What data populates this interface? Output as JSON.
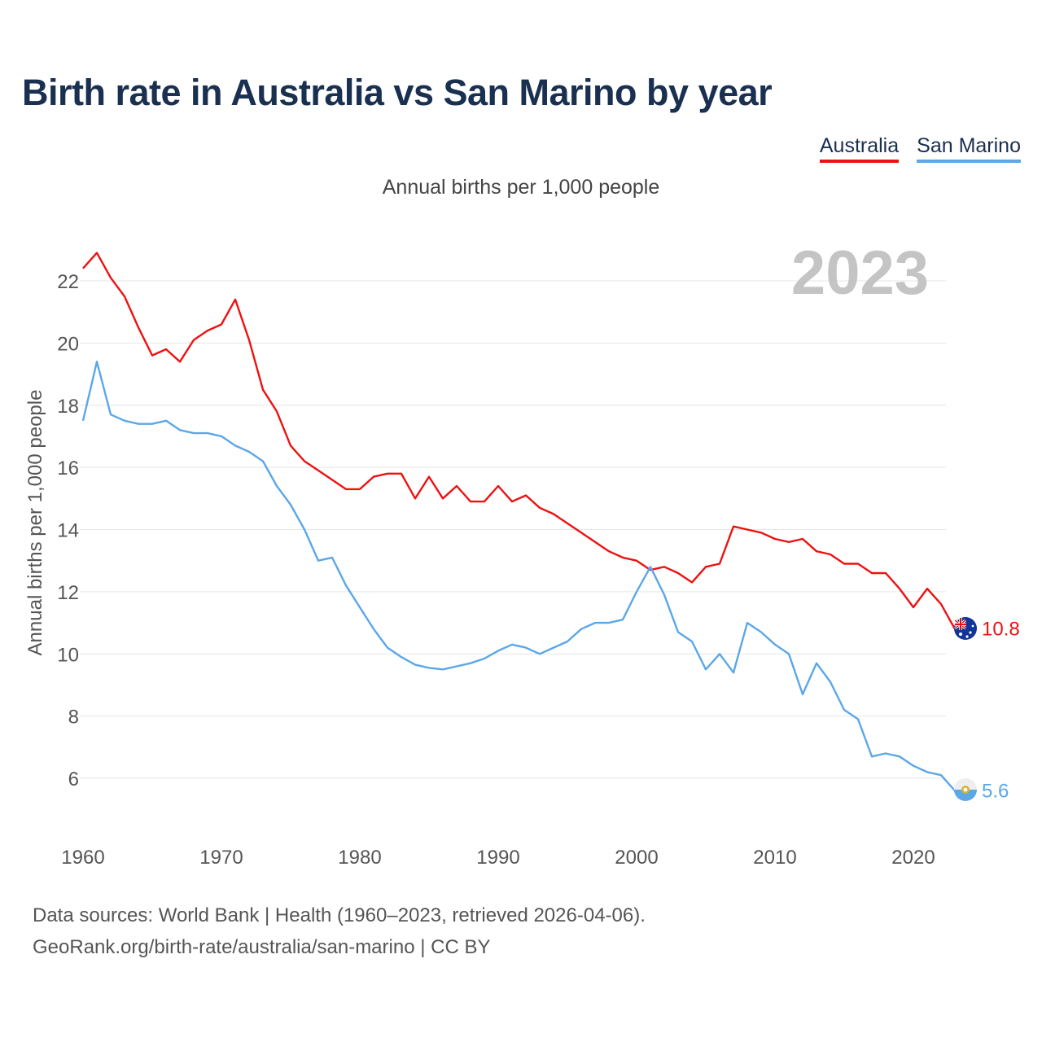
{
  "title": "Birth rate in Australia vs San Marino by year",
  "subtitle": "Annual births per 1,000 people",
  "legend": [
    "Australia",
    "San Marino"
  ],
  "year_watermark": "2023",
  "footer": {
    "line1": "Data sources: World Bank | Health (1960–2023, retrieved 2026-04-06).",
    "line2": "GeoRank.org/birth-rate/australia/san-marino | CC BY"
  },
  "colors": {
    "australia": "#ee1111",
    "san_marino": "#5ba7e8",
    "grid": "#e6e6e6",
    "tick_text": "#555555"
  },
  "chart_data": {
    "type": "line",
    "title": "Birth rate in Australia vs San Marino by year",
    "ylabel": "Annual births per 1,000 people",
    "xlabel": "",
    "xlim": [
      1960,
      2023
    ],
    "ylim": [
      4.8,
      23
    ],
    "xticks": [
      1960,
      1970,
      1980,
      1990,
      2000,
      2010,
      2020
    ],
    "yticks": [
      6,
      8,
      10,
      12,
      14,
      16,
      18,
      20,
      22
    ],
    "grid": true,
    "legend_position": "top-right",
    "x": [
      1960,
      1961,
      1962,
      1963,
      1964,
      1965,
      1966,
      1967,
      1968,
      1969,
      1970,
      1971,
      1972,
      1973,
      1974,
      1975,
      1976,
      1977,
      1978,
      1979,
      1980,
      1981,
      1982,
      1983,
      1984,
      1985,
      1986,
      1987,
      1988,
      1989,
      1990,
      1991,
      1992,
      1993,
      1994,
      1995,
      1996,
      1997,
      1998,
      1999,
      2000,
      2001,
      2002,
      2003,
      2004,
      2005,
      2006,
      2007,
      2008,
      2009,
      2010,
      2011,
      2012,
      2013,
      2014,
      2015,
      2016,
      2017,
      2018,
      2019,
      2020,
      2021,
      2022,
      2023
    ],
    "series": [
      {
        "name": "Australia",
        "end_label": "10.8",
        "values": [
          22.4,
          22.9,
          22.1,
          21.5,
          20.5,
          19.6,
          19.8,
          19.4,
          20.1,
          20.4,
          20.6,
          21.4,
          20.1,
          18.5,
          17.8,
          16.7,
          16.2,
          15.9,
          15.6,
          15.3,
          15.3,
          15.7,
          15.8,
          15.8,
          15.0,
          15.7,
          15.0,
          15.4,
          14.9,
          14.9,
          15.4,
          14.9,
          15.1,
          14.7,
          14.5,
          14.2,
          13.9,
          13.6,
          13.3,
          13.1,
          13.0,
          12.7,
          12.8,
          12.6,
          12.3,
          12.8,
          12.9,
          14.1,
          14.0,
          13.9,
          13.7,
          13.6,
          13.7,
          13.3,
          13.2,
          12.9,
          12.9,
          12.6,
          12.6,
          12.1,
          11.5,
          12.1,
          11.6,
          10.8
        ]
      },
      {
        "name": "San Marino",
        "end_label": "5.6",
        "values": [
          17.5,
          19.4,
          17.7,
          17.5,
          17.4,
          17.4,
          17.5,
          17.2,
          17.1,
          17.1,
          17.0,
          16.7,
          16.5,
          16.2,
          15.4,
          14.8,
          14.0,
          13.0,
          13.1,
          12.2,
          11.5,
          10.8,
          10.2,
          9.9,
          9.65,
          9.55,
          9.5,
          9.6,
          9.7,
          9.85,
          10.1,
          10.3,
          10.2,
          10.0,
          10.2,
          10.4,
          10.8,
          11.0,
          11.0,
          11.1,
          12.0,
          12.8,
          11.9,
          10.7,
          10.4,
          9.5,
          10.0,
          9.4,
          11.0,
          10.7,
          10.3,
          10.0,
          8.7,
          9.7,
          9.1,
          8.2,
          7.9,
          6.7,
          6.8,
          6.7,
          6.4,
          6.2,
          6.1,
          5.6
        ]
      }
    ]
  }
}
